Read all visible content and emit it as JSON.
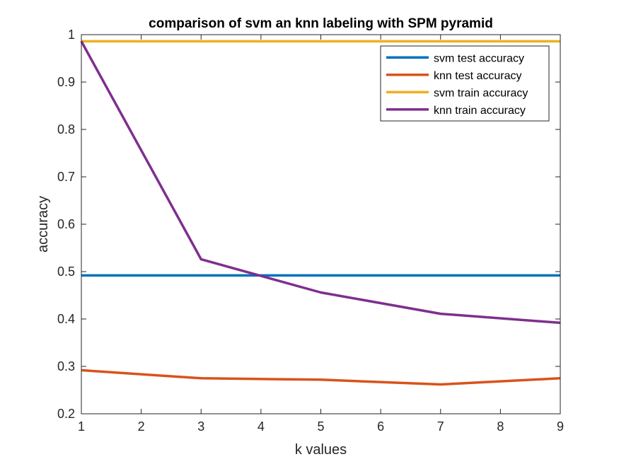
{
  "chart_data": {
    "type": "line",
    "title": "comparison of svm an knn labeling with SPM pyramid",
    "xlabel": "k values",
    "ylabel": "accuracy",
    "xlim": [
      1,
      9
    ],
    "ylim": [
      0.2,
      1
    ],
    "xticks": [
      "1",
      "2",
      "3",
      "4",
      "5",
      "6",
      "7",
      "8",
      "9"
    ],
    "yticks": [
      "0.2",
      "0.3",
      "0.4",
      "0.5",
      "0.6",
      "0.7",
      "0.8",
      "0.9",
      "1"
    ],
    "grid": false,
    "legend_position": "top-right",
    "x": [
      1,
      3,
      5,
      7,
      9
    ],
    "series": [
      {
        "name": "svm test accuracy",
        "color": "#0072BD",
        "values": [
          0.492,
          0.492,
          0.492,
          0.492,
          0.492
        ]
      },
      {
        "name": "knn test accuracy",
        "color": "#D95319",
        "values": [
          0.292,
          0.275,
          0.272,
          0.262,
          0.275
        ]
      },
      {
        "name": "svm train accuracy",
        "color": "#EDB120",
        "values": [
          0.986,
          0.986,
          0.986,
          0.986,
          0.986
        ]
      },
      {
        "name": "knn train accuracy",
        "color": "#7E2F8E",
        "values": [
          0.986,
          0.526,
          0.456,
          0.411,
          0.392
        ]
      }
    ]
  }
}
